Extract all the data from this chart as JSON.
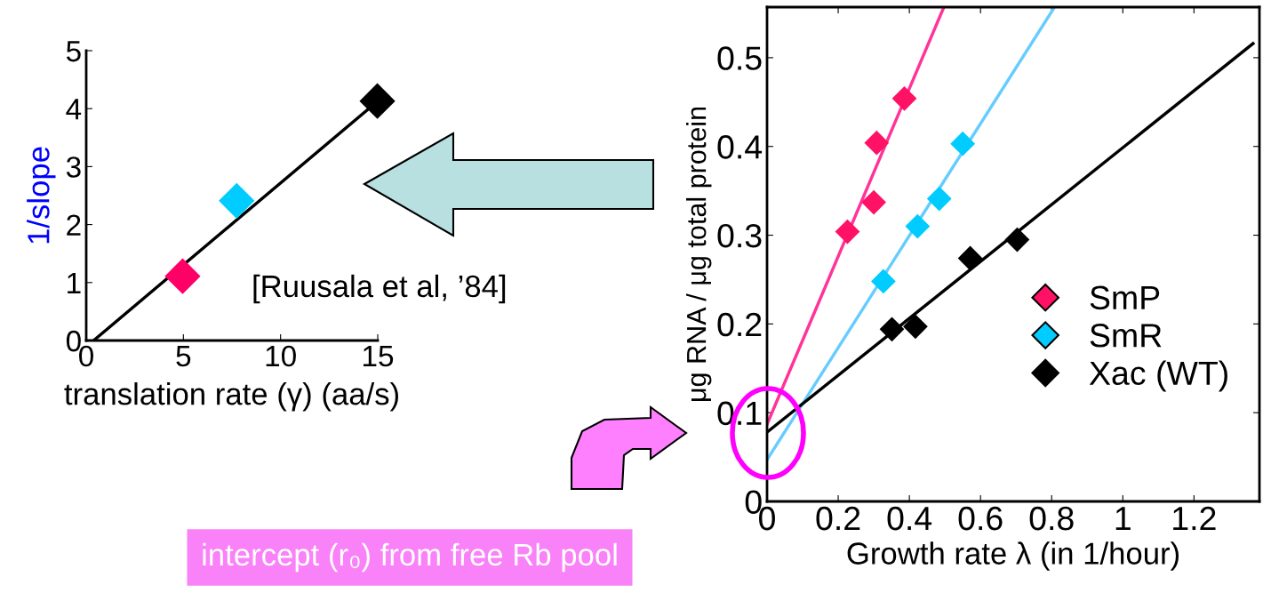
{
  "chart_data": [
    {
      "type": "scatter",
      "xlabel": "translation rate (γ) (aa/s)",
      "ylabel": "1/slope",
      "xlim": [
        0,
        15
      ],
      "ylim": [
        0,
        5
      ],
      "xticks": [
        0,
        5,
        10,
        15
      ],
      "yticks": [
        0,
        1,
        2,
        3,
        4,
        5
      ],
      "legend": false,
      "annotations": [
        "[Ruusala et al, ’84]"
      ],
      "series": [
        {
          "x": [
            4.96,
            7.74,
            14.98
          ],
          "values": [
            1.11,
            2.41,
            4.13
          ],
          "colors": [
            "#ff0066",
            "#00ccff",
            "#000000"
          ],
          "marker": "diamond"
        },
        {
          "type": "line",
          "x": [
            0.38,
            15
          ],
          "values": [
            0,
            4.13
          ],
          "color": "#000000",
          "marker": "none"
        }
      ]
    },
    {
      "type": "scatter",
      "xlabel": "Growth rate λ (in 1/hour)",
      "ylabel": "μg RNA / μg total protein",
      "xlim": [
        0,
        1.384
      ],
      "ylim": [
        0,
        0.557
      ],
      "xticks": [
        0,
        0.2,
        0.4,
        0.6,
        0.8,
        1,
        1.2
      ],
      "yticks": [
        0,
        0.1,
        0.2,
        0.3,
        0.4,
        0.5
      ],
      "legend": "right",
      "annotations": [
        "intercept (r₀) from free Rb pool"
      ],
      "series": [
        {
          "name": "SmP",
          "x": [
            0.226,
            0.3,
            0.308,
            0.386
          ],
          "values": [
            0.304,
            0.337,
            0.404,
            0.454
          ],
          "color": "#ff1166",
          "marker": "diamond"
        },
        {
          "name": "SmR",
          "x": [
            0.327,
            0.423,
            0.484,
            0.55
          ],
          "values": [
            0.248,
            0.31,
            0.341,
            0.403
          ],
          "color": "#00ccff",
          "marker": "diamond"
        },
        {
          "name": "Xac (WT)",
          "x": [
            0.351,
            0.417,
            0.571,
            0.703
          ],
          "values": [
            0.194,
            0.197,
            0.274,
            0.295
          ],
          "color": "#000000",
          "marker": "diamond"
        },
        {
          "type": "line",
          "x": [
            0,
            0.497
          ],
          "values": [
            0.087,
            0.557
          ],
          "color": "#ff3399",
          "marker": "none"
        },
        {
          "type": "line",
          "x": [
            0,
            0.808
          ],
          "values": [
            0.047,
            0.557
          ],
          "color": "#66ccff",
          "marker": "none"
        },
        {
          "type": "line",
          "x": [
            0,
            1.366
          ],
          "values": [
            0.078,
            0.516
          ],
          "color": "#000000",
          "marker": "none"
        }
      ]
    }
  ]
}
